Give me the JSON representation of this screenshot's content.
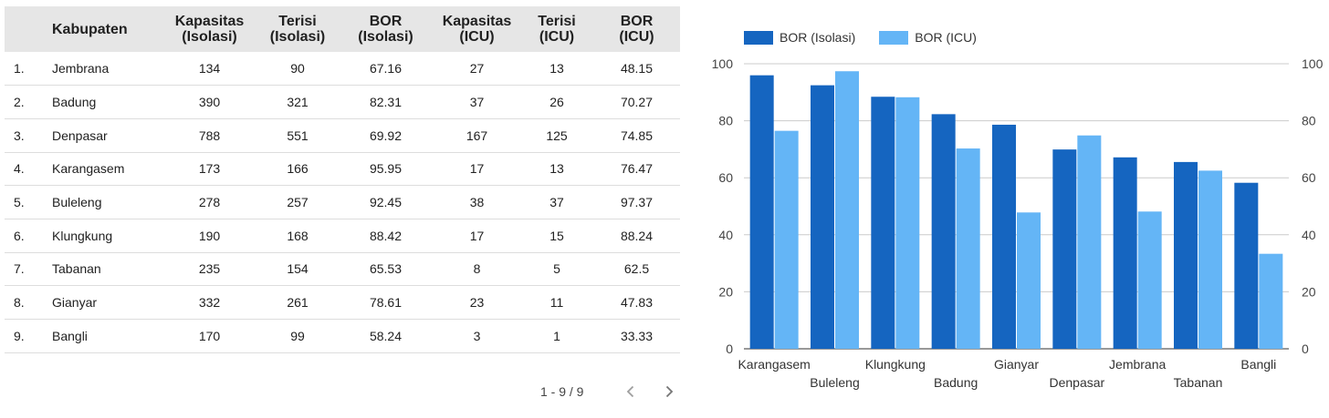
{
  "table": {
    "headers": [
      {
        "line1": "",
        "line2": ""
      },
      {
        "line1": "Kabupaten",
        "line2": ""
      },
      {
        "line1": "Kapasitas",
        "line2": "(Isolasi)"
      },
      {
        "line1": "Terisi",
        "line2": "(Isolasi)"
      },
      {
        "line1": "BOR",
        "line2": "(Isolasi)"
      },
      {
        "line1": "Kapasitas",
        "line2": "(ICU)"
      },
      {
        "line1": "Terisi",
        "line2": "(ICU)"
      },
      {
        "line1": "BOR",
        "line2": "(ICU)"
      }
    ],
    "rows": [
      {
        "idx": "1.",
        "name": "Jembrana",
        "kap_iso": "134",
        "ter_iso": "90",
        "bor_iso": "67.16",
        "kap_icu": "27",
        "ter_icu": "13",
        "bor_icu": "48.15"
      },
      {
        "idx": "2.",
        "name": "Badung",
        "kap_iso": "390",
        "ter_iso": "321",
        "bor_iso": "82.31",
        "kap_icu": "37",
        "ter_icu": "26",
        "bor_icu": "70.27"
      },
      {
        "idx": "3.",
        "name": "Denpasar",
        "kap_iso": "788",
        "ter_iso": "551",
        "bor_iso": "69.92",
        "kap_icu": "167",
        "ter_icu": "125",
        "bor_icu": "74.85"
      },
      {
        "idx": "4.",
        "name": "Karangasem",
        "kap_iso": "173",
        "ter_iso": "166",
        "bor_iso": "95.95",
        "kap_icu": "17",
        "ter_icu": "13",
        "bor_icu": "76.47"
      },
      {
        "idx": "5.",
        "name": "Buleleng",
        "kap_iso": "278",
        "ter_iso": "257",
        "bor_iso": "92.45",
        "kap_icu": "38",
        "ter_icu": "37",
        "bor_icu": "97.37"
      },
      {
        "idx": "6.",
        "name": "Klungkung",
        "kap_iso": "190",
        "ter_iso": "168",
        "bor_iso": "88.42",
        "kap_icu": "17",
        "ter_icu": "15",
        "bor_icu": "88.24"
      },
      {
        "idx": "7.",
        "name": "Tabanan",
        "kap_iso": "235",
        "ter_iso": "154",
        "bor_iso": "65.53",
        "kap_icu": "8",
        "ter_icu": "5",
        "bor_icu": "62.5"
      },
      {
        "idx": "8.",
        "name": "Gianyar",
        "kap_iso": "332",
        "ter_iso": "261",
        "bor_iso": "78.61",
        "kap_icu": "23",
        "ter_icu": "11",
        "bor_icu": "47.83"
      },
      {
        "idx": "9.",
        "name": "Bangli",
        "kap_iso": "170",
        "ter_iso": "99",
        "bor_iso": "58.24",
        "kap_icu": "3",
        "ter_icu": "1",
        "bor_icu": "33.33"
      }
    ]
  },
  "pager": {
    "range": "1 - 9 / 9",
    "prev_icon": "chevron-left-icon",
    "next_icon": "chevron-right-icon"
  },
  "chart_data": {
    "type": "bar",
    "title": "",
    "xlabel": "",
    "ylabel": "",
    "ylim": [
      0,
      100
    ],
    "yticks": [
      0,
      20,
      40,
      60,
      80,
      100
    ],
    "ytick_labels": [
      "0",
      "20",
      "40",
      "60",
      "80",
      "100"
    ],
    "right_axis_ticks": [
      0,
      20,
      40,
      60,
      80,
      100
    ],
    "right_axis_labels": [
      "0",
      "20",
      "40",
      "60",
      "80",
      "100"
    ],
    "grid": true,
    "legend_position": "top-left",
    "categories": [
      "Karangasem",
      "Buleleng",
      "Klungkung",
      "Badung",
      "Gianyar",
      "Denpasar",
      "Jembrana",
      "Tabanan",
      "Bangli"
    ],
    "series": [
      {
        "name": "BOR (Isolasi)",
        "color": "#1565c0",
        "values": [
          95.95,
          92.45,
          88.42,
          82.31,
          78.61,
          69.92,
          67.16,
          65.53,
          58.24
        ]
      },
      {
        "name": "BOR (ICU)",
        "color": "#64b5f6",
        "values": [
          76.47,
          97.37,
          88.24,
          70.27,
          47.83,
          74.85,
          48.15,
          62.5,
          33.33
        ]
      }
    ]
  }
}
